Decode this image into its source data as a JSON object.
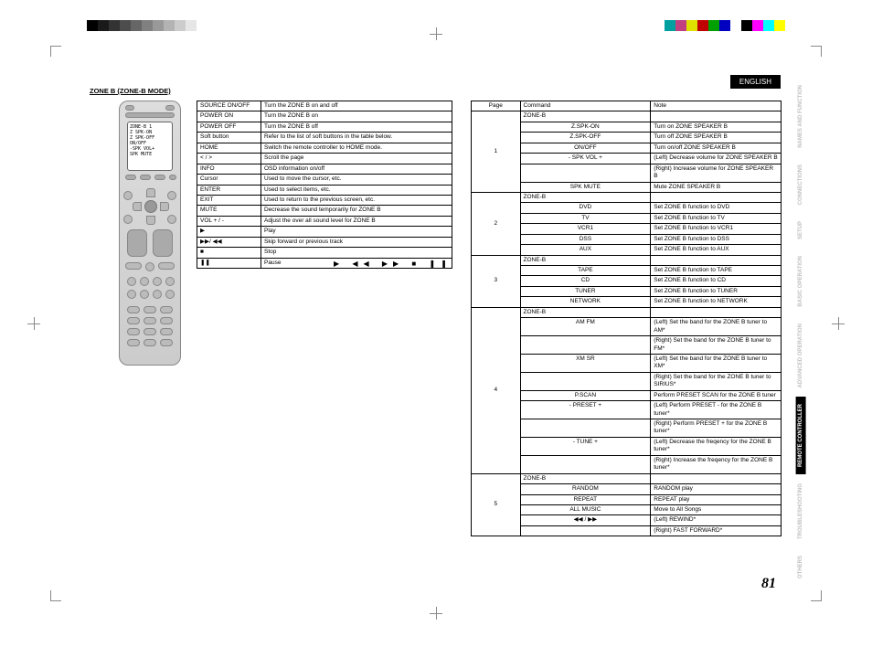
{
  "page_number": "81",
  "language_label": "ENGLISH",
  "section_title": "ZONE B (ZONE-B MODE)",
  "side_tabs": [
    {
      "label": "NAMES AND FUNCTION",
      "active": false
    },
    {
      "label": "CONNECTIONS",
      "active": false
    },
    {
      "label": "SETUP",
      "active": false
    },
    {
      "label": "BASIC OPERATION",
      "active": false
    },
    {
      "label": "ADVANCED OPERATION",
      "active": false
    },
    {
      "label": "REMOTE CONTROLLER",
      "active": true
    },
    {
      "label": "TROUBLESHOOTING",
      "active": false
    },
    {
      "label": "OTHERS",
      "active": false
    }
  ],
  "colorbar_left": [
    "#000000",
    "#1a1a1a",
    "#333333",
    "#4d4d4d",
    "#666666",
    "#808080",
    "#999999",
    "#b3b3b3",
    "#cccccc",
    "#e6e6e6",
    "#ffffff"
  ],
  "colorbar_right": [
    "#00a0a0",
    "#c04080",
    "#e0e000",
    "#c00000",
    "#00a000",
    "#0000c0",
    "#ffffff",
    "#000000",
    "#ff00ff",
    "#00ffff",
    "#ffff00"
  ],
  "remote_screen_lines": [
    "ZONE-B  1",
    "Z SPK-ON",
    "Z SPK-OFF",
    "ON/OFF",
    "-SPK VOL+",
    "SPK MUTE"
  ],
  "table1": [
    [
      "SOURCE ON/OFF",
      "Turn the ZONE B on and off"
    ],
    [
      "POWER ON",
      "Turn the ZONE B on"
    ],
    [
      "POWER OFF",
      "Turn the ZONE B off"
    ],
    [
      "Soft button",
      "Refer to the list of soft buttons in the table below."
    ],
    [
      "HOME",
      "Switch the remote controller to HOME mode."
    ],
    [
      "< / >",
      "Scroll the page"
    ],
    [
      "INFO",
      "OSD information on/off"
    ],
    [
      "Cursor",
      "Used to move the cursor, etc."
    ],
    [
      "ENTER",
      "Used to select items, etc."
    ],
    [
      "EXIT",
      "Used to return to the previous screen, etc."
    ],
    [
      "MUTE",
      "Decrease the sound temporarily for ZONE B"
    ],
    [
      "VOL + / -",
      "Adjust the over all sound level for ZONE B"
    ],
    [
      "▶",
      "Play"
    ],
    [
      "▶▶/ ◀◀",
      "Skip forward or previous track"
    ],
    [
      "■",
      "Stop"
    ],
    [
      "❚❚",
      "Pause"
    ]
  ],
  "symbols_row": "▶ ◀◀ ▶▶ ■   ❚❚",
  "table2_header": [
    "Page",
    "Command",
    "Note"
  ],
  "table2": [
    {
      "page": "1",
      "rows": [
        [
          "ZONE-B",
          ""
        ],
        [
          "Z.SPK-ON",
          "Turn on ZONE SPEAKER B"
        ],
        [
          "Z.SPK-OFF",
          "Turn off ZONE SPEAKER B"
        ],
        [
          "ON/OFF",
          "Turn on/off ZONE SPEAKER B"
        ],
        [
          "- SPK VOL +",
          "(Left) Decrease volume for ZONE SPEAKER B"
        ],
        [
          "",
          "(Right) Increase volume for ZONE SPEAKER B"
        ],
        [
          "SPK MUTE",
          "Mute ZONE SPEAKER B"
        ]
      ]
    },
    {
      "page": "2",
      "rows": [
        [
          "ZONE-B",
          ""
        ],
        [
          "DVD",
          "Set ZONE B function to DVD"
        ],
        [
          "TV",
          "Set ZONE B function to TV"
        ],
        [
          "VCR1",
          "Set ZONE B function to VCR1"
        ],
        [
          "DSS",
          "Set ZONE B function to DSS"
        ],
        [
          "AUX",
          "Set ZONE B function to AUX"
        ]
      ]
    },
    {
      "page": "3",
      "rows": [
        [
          "ZONE-B",
          ""
        ],
        [
          "TAPE",
          "Set ZONE B function to TAPE"
        ],
        [
          "CD",
          "Set ZONE B function to CD"
        ],
        [
          "TUNER",
          "Set ZONE B function to TUNER"
        ],
        [
          "NETWORK",
          "Set ZONE B function to NETWORK"
        ]
      ]
    },
    {
      "page": "4",
      "rows": [
        [
          "ZONE-B",
          ""
        ],
        [
          "AM  FM",
          "(Left) Set the band for the ZONE B tuner to AM*"
        ],
        [
          "",
          "(Right) Set the band for the ZONE B tuner to FM*"
        ],
        [
          "XM  SR",
          "(Left) Set the band for the ZONE B tuner to XM*"
        ],
        [
          "",
          "(Right) Set the band for the ZONE B tuner to SIRIUS*"
        ],
        [
          "P.SCAN",
          "Perform PRESET SCAN for the ZONE B tuner"
        ],
        [
          "- PRESET +",
          "(Left) Perform PRESET - for the ZONE B tuner*"
        ],
        [
          "",
          "(Right) Perform PRESET + for the ZONE B tuner*"
        ],
        [
          "- TUNE +",
          "(Left) Decrease the freqency for the ZONE B tuner*"
        ],
        [
          "",
          "(Right) Increase the freqency for the ZONE B tuner*"
        ]
      ]
    },
    {
      "page": "5",
      "rows": [
        [
          "ZONE-B",
          ""
        ],
        [
          "RANDOM",
          "RANDOM play"
        ],
        [
          "REPEAT",
          "REPEAT play"
        ],
        [
          "ALL MUSIC",
          "Move to All Songs"
        ],
        [
          "◀◀ / ▶▶",
          "(Left) REWIND*"
        ],
        [
          "",
          "(Right) FAST FORWARD*"
        ]
      ]
    }
  ]
}
